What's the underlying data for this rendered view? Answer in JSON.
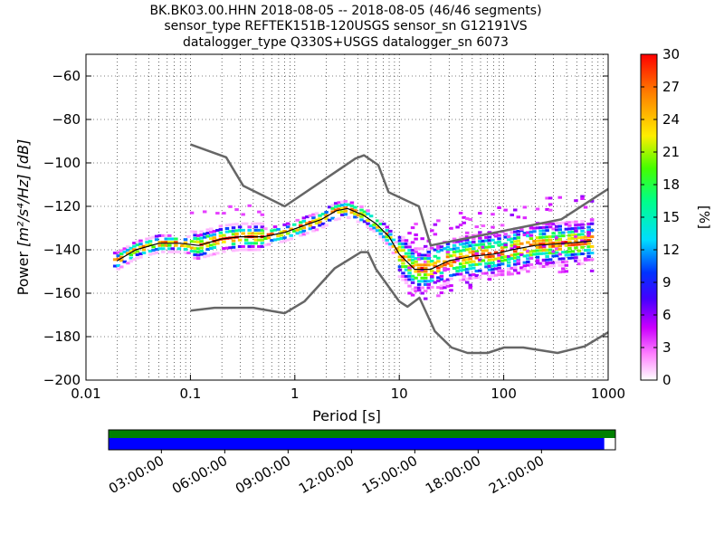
{
  "title": {
    "line1": "BK.BK03.00.HHN   2018-08-05 -- 2018-08-05  (46/46 segments)",
    "line2": "sensor_type REFTEK151B-120USGS sensor_sn G12191VS",
    "line3": "datalogger_type Q330S+USGS datalogger_sn 6073"
  },
  "colors": {
    "reference_curve": "#666666",
    "mean_curve": "#000000",
    "data_available": "#008000",
    "psd_coverage": "#0000ff"
  },
  "chart_data": {
    "type": "heatmap",
    "xlabel": "Period [s]",
    "ylabel_text": "Power",
    "ylabel_unit": "[m²/s⁴/Hz] [dB]",
    "x_scale": "log",
    "xlim": [
      0.01,
      1000
    ],
    "ylim": [
      -200,
      -50
    ],
    "x_ticks": [
      0.01,
      0.1,
      1,
      10,
      100,
      1000
    ],
    "x_tick_labels": [
      "0.01",
      "0.1",
      "1",
      "10",
      "100",
      "1000"
    ],
    "y_ticks": [
      -200,
      -180,
      -160,
      -140,
      -120,
      -100,
      -80,
      -60
    ],
    "y_tick_labels": [
      "−200",
      "−180",
      "−160",
      "−140",
      "−120",
      "−100",
      "−80",
      "−60"
    ],
    "grid": true,
    "colorbar": {
      "label": "[%]",
      "min": 0,
      "max": 30,
      "ticks": [
        0,
        3,
        6,
        9,
        12,
        15,
        18,
        21,
        24,
        27,
        30
      ],
      "colormap": [
        "#ffffff",
        "#ff00ff",
        "#0000ff",
        "#00ffff",
        "#00ff00",
        "#ffff00",
        "#ff8000",
        "#ff0000"
      ]
    },
    "high_noise_model": {
      "x": [
        0.1,
        0.22,
        0.32,
        0.8,
        3.8,
        4.6,
        6.3,
        7.9,
        15.4,
        20,
        354.8,
        1000
      ],
      "y": [
        -91.5,
        -97.4,
        -110.5,
        -120,
        -98,
        -96.5,
        -101,
        -113.5,
        -120,
        -138,
        -126,
        -112
      ]
    },
    "low_noise_model": {
      "x": [
        0.1,
        0.17,
        0.4,
        0.8,
        1.24,
        2.4,
        4.3,
        5,
        6,
        10,
        12,
        15.6,
        21.9,
        31.6,
        45,
        70,
        101,
        154,
        328,
        600,
        1000
      ],
      "y": [
        -168,
        -166.7,
        -166.7,
        -169.2,
        -163.7,
        -148.6,
        -141.1,
        -141.1,
        -149,
        -163.8,
        -166.2,
        -162.1,
        -177.5,
        -185,
        -187.5,
        -187.5,
        -185,
        -185,
        -187.5,
        -184.4,
        -178
      ]
    },
    "mean_psd": {
      "x": [
        0.02,
        0.03,
        0.05,
        0.08,
        0.12,
        0.2,
        0.3,
        0.5,
        0.8,
        1.2,
        1.8,
        2.5,
        3.2,
        4.5,
        6,
        8,
        10,
        14,
        20,
        30,
        50,
        80,
        120,
        200,
        400,
        700
      ],
      "y": [
        -145,
        -140,
        -137,
        -137,
        -138,
        -135,
        -134,
        -134,
        -132,
        -129,
        -126,
        -122,
        -121,
        -124,
        -128,
        -134,
        -142,
        -149,
        -149,
        -145,
        -143,
        -142,
        -140,
        -138,
        -137,
        -136
      ]
    },
    "time_axis": {
      "tick_labels": [
        "03:00:00",
        "06:00:00",
        "09:00:00",
        "12:00:00",
        "15:00:00",
        "18:00:00",
        "21:00:00"
      ],
      "tick_hours": [
        3,
        6,
        9,
        12,
        15,
        18,
        21
      ],
      "data_available_fraction": 1.0,
      "psd_coverage_fraction": 0.978
    }
  }
}
